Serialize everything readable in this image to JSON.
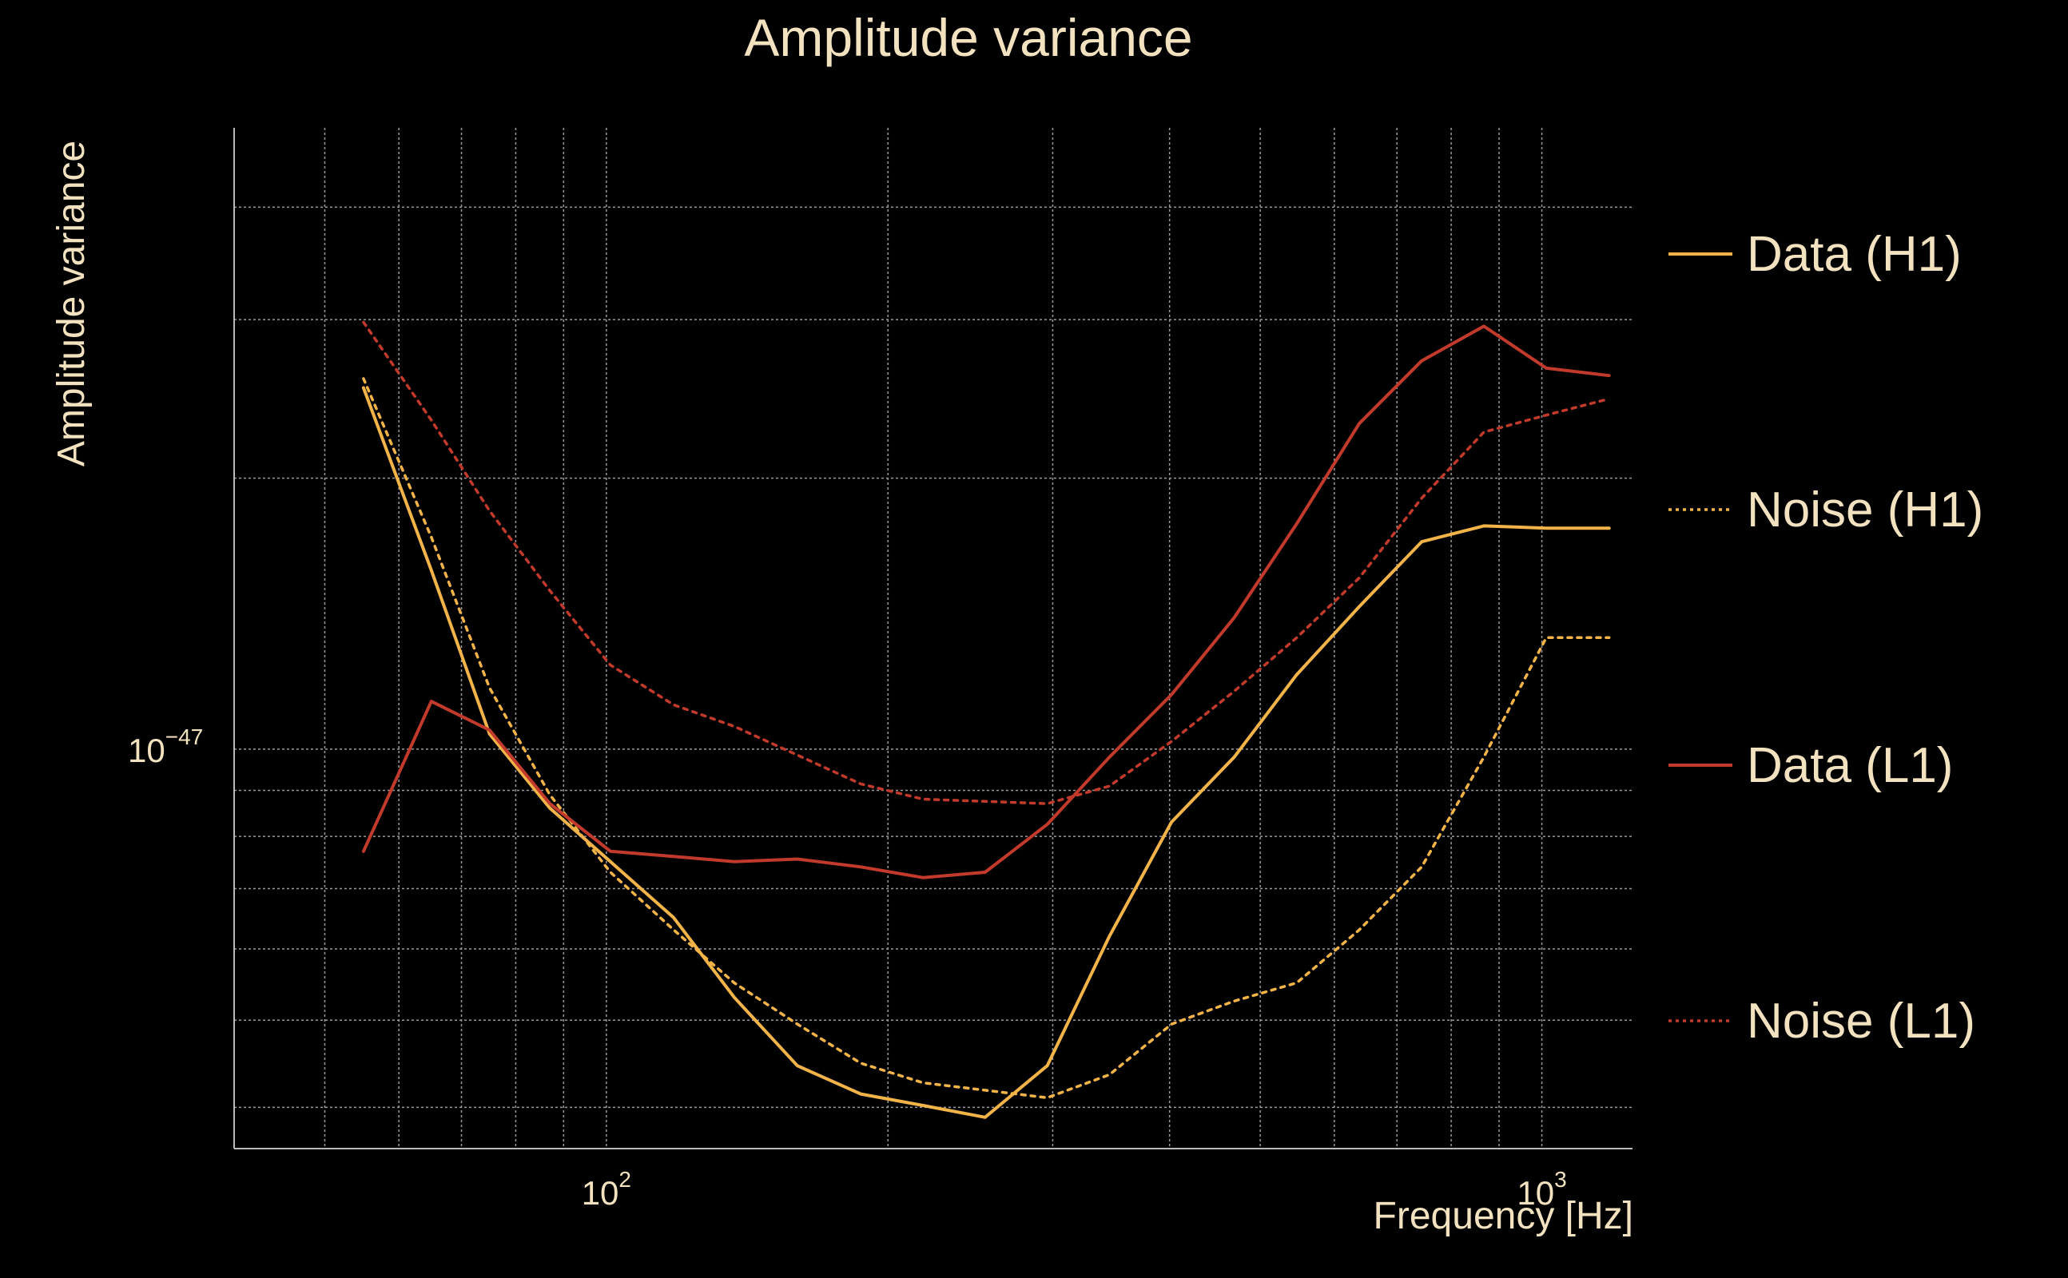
{
  "chart_data": {
    "type": "line",
    "title": "Amplitude variance",
    "xlabel": "Frequency [Hz]",
    "ylabel": "Amplitude variance",
    "xscale": "log",
    "yscale": "log",
    "xlim": [
      40,
      1250
    ],
    "ylim": [
      3.6e-48,
      4.9e-47
    ],
    "grid": true,
    "legend_position": "right",
    "x_ticks": [
      {
        "value": 100,
        "base": "10",
        "exp": "2"
      },
      {
        "value": 1000,
        "base": "10",
        "exp": "3"
      }
    ],
    "y_ticks": [
      {
        "value": 1e-47,
        "base": "10",
        "exp": "−47"
      }
    ],
    "series": [
      {
        "name": "Data (H1)",
        "color": "#f2b449",
        "style": "solid",
        "x": [
          55,
          65,
          75,
          87,
          101,
          118,
          137,
          160,
          187,
          218,
          254,
          296,
          345,
          402,
          469,
          547,
          638,
          744,
          867,
          1011,
          1180
        ],
        "y": [
          2.52e-47,
          1.58e-47,
          1.04e-47,
          8.6e-48,
          7.5e-48,
          6.5e-48,
          5.3e-48,
          4.45e-48,
          4.14e-48,
          4.02e-48,
          3.9e-48,
          4.45e-48,
          6.2e-48,
          8.3e-48,
          9.8e-48,
          1.21e-47,
          1.44e-47,
          1.7e-47,
          1.77e-47,
          1.76e-47,
          1.76e-47
        ]
      },
      {
        "name": "Noise (H1)",
        "color": "#f2b449",
        "style": "dotted",
        "x": [
          55,
          65,
          75,
          87,
          101,
          118,
          137,
          160,
          187,
          218,
          254,
          296,
          345,
          402,
          469,
          547,
          638,
          744,
          867,
          1011,
          1180
        ],
        "y": [
          2.58e-47,
          1.72e-47,
          1.17e-47,
          8.9e-48,
          7.3e-48,
          6.3e-48,
          5.5e-48,
          4.95e-48,
          4.48e-48,
          4.26e-48,
          4.18e-48,
          4.1e-48,
          4.35e-48,
          4.95e-48,
          5.25e-48,
          5.5e-48,
          6.3e-48,
          7.4e-48,
          9.8e-48,
          1.33e-47,
          1.33e-47
        ]
      },
      {
        "name": "Data (L1)",
        "color": "#c23a2c",
        "style": "solid",
        "x": [
          55,
          65,
          75,
          87,
          101,
          118,
          137,
          160,
          187,
          218,
          254,
          296,
          345,
          402,
          469,
          547,
          638,
          744,
          867,
          1011,
          1180
        ],
        "y": [
          7.7e-48,
          1.13e-47,
          1.05e-47,
          8.7e-48,
          7.7e-48,
          7.6e-48,
          7.5e-48,
          7.55e-48,
          7.4e-48,
          7.2e-48,
          7.3e-48,
          8.25e-48,
          9.8e-48,
          1.15e-47,
          1.4e-47,
          1.78e-47,
          2.3e-47,
          2.7e-47,
          2.95e-47,
          2.65e-47,
          2.6e-47
        ]
      },
      {
        "name": "Noise (L1)",
        "color": "#c23a2c",
        "style": "dotted",
        "x": [
          55,
          65,
          75,
          87,
          101,
          118,
          137,
          160,
          187,
          218,
          254,
          296,
          345,
          402,
          469,
          547,
          638,
          744,
          867,
          1011,
          1180
        ],
        "y": [
          2.98e-47,
          2.32e-47,
          1.84e-47,
          1.5e-47,
          1.24e-47,
          1.12e-47,
          1.06e-47,
          9.85e-48,
          9.15e-48,
          8.8e-48,
          8.75e-48,
          8.7e-48,
          9.1e-48,
          1.02e-47,
          1.16e-47,
          1.33e-47,
          1.55e-47,
          1.9e-47,
          2.25e-47,
          2.35e-47,
          2.45e-47
        ]
      }
    ]
  }
}
